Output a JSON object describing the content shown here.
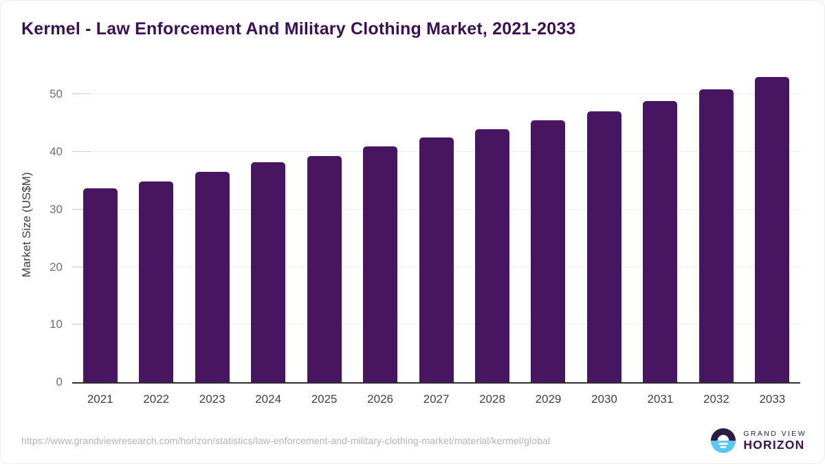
{
  "header": {
    "title": "Kermel - Law Enforcement And Military Clothing Market, 2021-2033",
    "title_color": "#3a1053"
  },
  "chart_data": {
    "type": "bar",
    "title": "Kermel - Law Enforcement And Military Clothing Market, 2021-2033",
    "categories": [
      "2021",
      "2022",
      "2023",
      "2024",
      "2025",
      "2026",
      "2027",
      "2028",
      "2029",
      "2030",
      "2031",
      "2032",
      "2033"
    ],
    "values": [
      33.7,
      34.9,
      36.5,
      38.2,
      39.3,
      41.0,
      42.5,
      44.0,
      45.5,
      47.1,
      48.9,
      50.9,
      53.1
    ],
    "xlabel": "",
    "ylabel": "Market Size (US$M)",
    "yticks": [
      0,
      10,
      20,
      30,
      40,
      50
    ],
    "ylim": [
      0,
      54
    ],
    "grid": true,
    "legend": "none",
    "bar_color": "#481660",
    "gridline_color": "#ededed",
    "axis_line_color": "#2e2e2e"
  },
  "footer": {
    "source_url": "https://www.grandviewresearch.com/horizon/statistics/law-enforcement-and-military-clothing-market/material/kermel/global",
    "logo": {
      "line1": "GRAND VIEW",
      "line2": "HORIZON",
      "icon_top_color": "#2b1b47",
      "icon_bottom_color": "#5bc6f2"
    }
  }
}
